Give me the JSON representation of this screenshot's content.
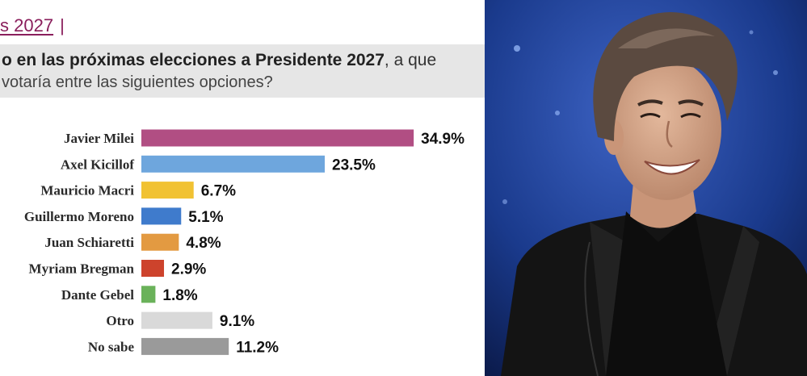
{
  "header": {
    "title": "s 2027",
    "separator": "|"
  },
  "question": {
    "line1_bold": "o en las próximas elecciones a Presidente 2027",
    "line1_rest": ", a que",
    "line2": "votaría entre las siguientes opciones?"
  },
  "chart_data": {
    "type": "bar",
    "orientation": "horizontal",
    "categories": [
      "Javier Milei",
      "Axel Kicillof",
      "Mauricio Macri",
      "Guillermo Moreno",
      "Juan Schiaretti",
      "Myriam Bregman",
      "Dante Gebel",
      "Otro",
      "No sabe"
    ],
    "values": [
      34.9,
      23.5,
      6.7,
      5.1,
      4.8,
      2.9,
      1.8,
      9.1,
      11.2
    ],
    "value_labels": [
      "34.9%",
      "23.5%",
      "6.7%",
      "5.1%",
      "4.8%",
      "2.9%",
      "1.8%",
      "9.1%",
      "11.2%"
    ],
    "colors": [
      "#b14e83",
      "#6ea6dd",
      "#f1c233",
      "#3f7bcc",
      "#e39a41",
      "#cd432c",
      "#6ab25a",
      "#d9d9d9",
      "#9a9a9a"
    ],
    "grid": false,
    "legend": "none"
  },
  "photo": {
    "background_color": "#1a3a8c",
    "jacket_color": "#141414",
    "shirt_color": "#0d0d0d",
    "hair_color": "#5b4a40",
    "skin_color": "#d7a88a"
  }
}
